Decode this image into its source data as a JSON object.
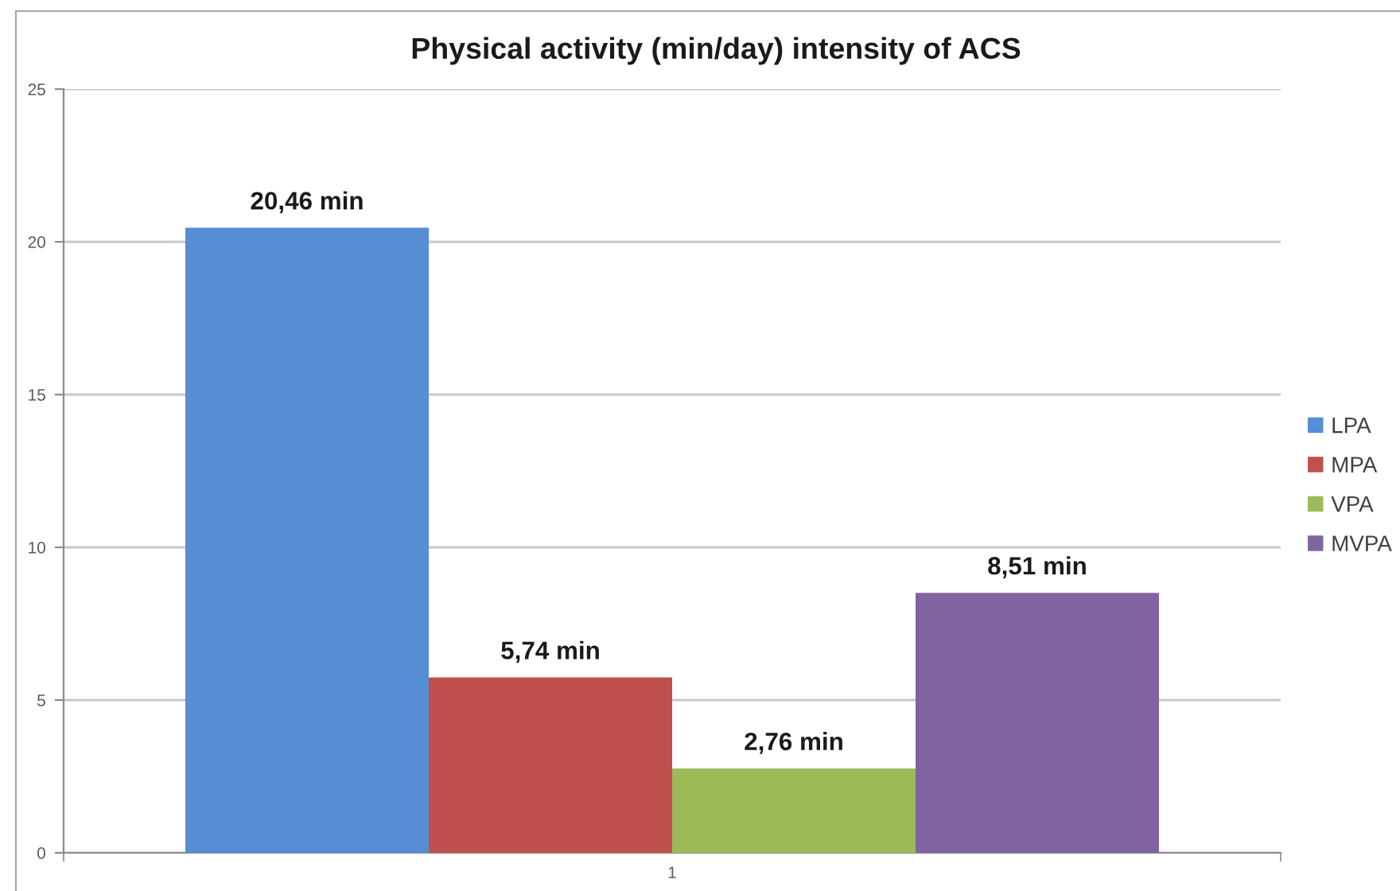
{
  "chart_data": {
    "type": "bar",
    "title": "Physical activity (min/day) intensity of ACS",
    "categories": [
      "1"
    ],
    "series": [
      {
        "name": "LPA",
        "color": "#558ed5",
        "values": [
          20.46
        ],
        "value_labels": [
          "20,46 min"
        ]
      },
      {
        "name": "MPA",
        "color": "#c0504d",
        "values": [
          5.74
        ],
        "value_labels": [
          "5,74 min"
        ]
      },
      {
        "name": "VPA",
        "color": "#9bbb59",
        "values": [
          2.76
        ],
        "value_labels": [
          "2,76 min"
        ]
      },
      {
        "name": "MVPA",
        "color": "#8064a2",
        "values": [
          8.51
        ],
        "value_labels": [
          "8,51 min"
        ]
      }
    ],
    "ylim": [
      0,
      25
    ],
    "yticks": [
      0,
      5,
      10,
      15,
      20,
      25
    ],
    "grid": "y",
    "legend": "right"
  }
}
